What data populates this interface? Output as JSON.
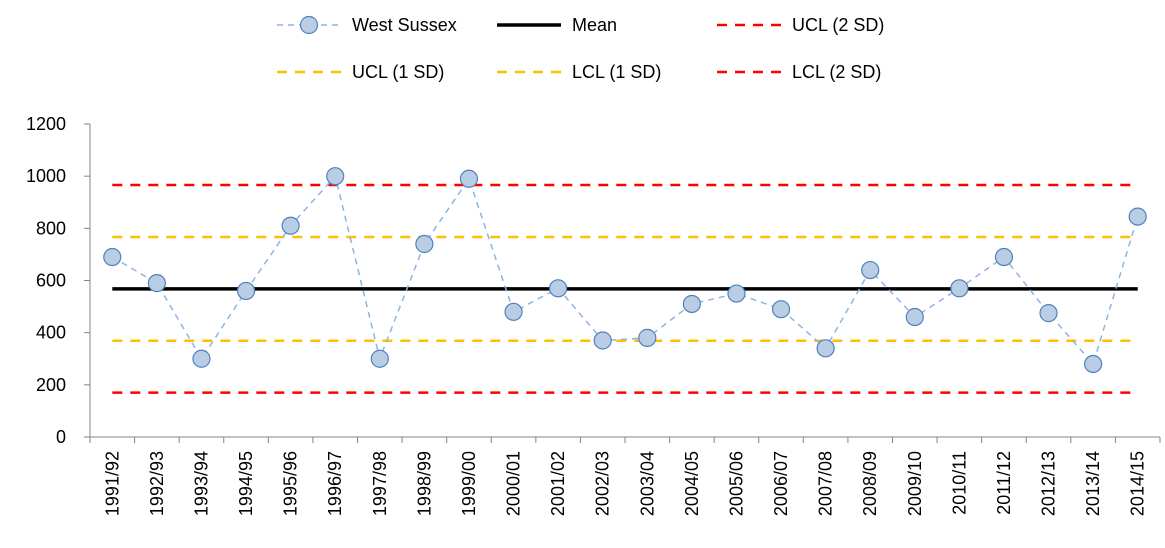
{
  "chart_data": {
    "type": "line",
    "categories": [
      "1991/92",
      "1992/93",
      "1993/94",
      "1994/95",
      "1995/96",
      "1996/97",
      "1997/98",
      "1998/99",
      "1999/00",
      "2000/01",
      "2001/02",
      "2002/03",
      "2003/04",
      "2004/05",
      "2005/06",
      "2006/07",
      "2007/08",
      "2008/09",
      "2009/10",
      "2010/11",
      "2011/12",
      "2012/13",
      "2013/14",
      "2014/15"
    ],
    "series": [
      {
        "name": "West Sussex",
        "style": "dashed-line-with-markers",
        "color": "#8EB4E3",
        "marker_fill": "#B9CDE5",
        "marker_stroke": "#4F81BD",
        "values": [
          690,
          590,
          300,
          560,
          810,
          1000,
          300,
          740,
          990,
          480,
          570,
          370,
          380,
          510,
          550,
          490,
          340,
          640,
          460,
          570,
          690,
          475,
          280,
          845
        ]
      },
      {
        "name": "Mean",
        "style": "solid",
        "color": "#000000",
        "value": 568
      },
      {
        "name": "UCL (2 SD)",
        "style": "dashed",
        "color": "#FF0000",
        "value": 966
      },
      {
        "name": "UCL (1 SD)",
        "style": "dashed",
        "color": "#FFC000",
        "value": 767
      },
      {
        "name": "LCL (1 SD)",
        "style": "dashed",
        "color": "#FFC000",
        "value": 369
      },
      {
        "name": "LCL (2 SD)",
        "style": "dashed",
        "color": "#FF0000",
        "value": 170
      }
    ],
    "yticks": [
      "0",
      "200",
      "400",
      "600",
      "800",
      "1000",
      "1200"
    ],
    "ylim": [
      0,
      1200
    ],
    "title": "",
    "xlabel": "",
    "ylabel": "",
    "legend_position": "top",
    "grid": false
  }
}
